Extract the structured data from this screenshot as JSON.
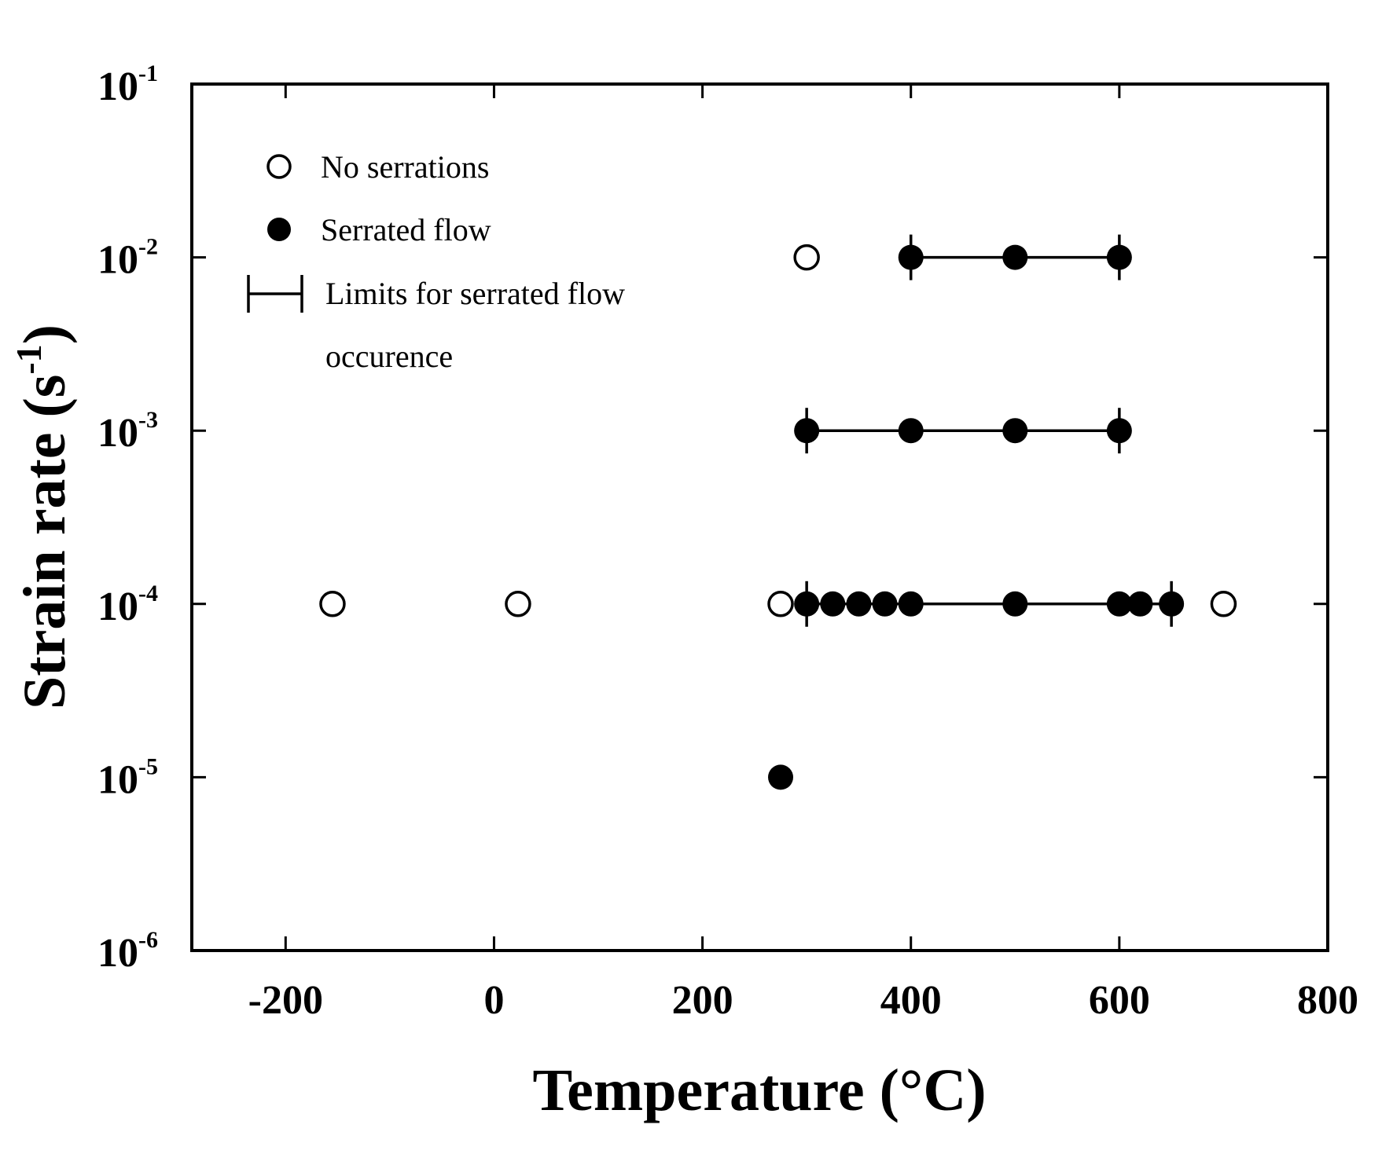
{
  "chart_data": {
    "type": "scatter",
    "xlabel": "Temperature (°C)",
    "ylabel_main": "Strain rate (s",
    "ylabel_sup": "-1",
    "ylabel_close": ")",
    "x_scale": "linear",
    "y_scale": "log",
    "xlim": [
      -290,
      800
    ],
    "ylim": [
      1e-06,
      0.1
    ],
    "x_ticks": [
      -200,
      0,
      200,
      400,
      600,
      800
    ],
    "x_tick_labels": [
      "-200",
      "0",
      "200",
      "400",
      "600",
      "800"
    ],
    "y_ticks": [
      {
        "value": 0.1,
        "base": "10",
        "exp": "-1"
      },
      {
        "value": 0.01,
        "base": "10",
        "exp": "-2"
      },
      {
        "value": 0.001,
        "base": "10",
        "exp": "-3"
      },
      {
        "value": 0.0001,
        "base": "10",
        "exp": "-4"
      },
      {
        "value": 1e-05,
        "base": "10",
        "exp": "-5"
      },
      {
        "value": 1e-06,
        "base": "10",
        "exp": "-6"
      }
    ],
    "grid": false,
    "legend_position": "top-left",
    "legend": {
      "no_serrations": "No serrations",
      "serrated_flow": "Serrated flow",
      "limits_line1": "Limits for serrated flow",
      "limits_line2": "occurence"
    },
    "series": [
      {
        "name": "No serrations",
        "marker": "open-circle",
        "points": [
          {
            "x": 300,
            "y": 0.01
          },
          {
            "x": -155,
            "y": 0.0001
          },
          {
            "x": 23,
            "y": 0.0001
          },
          {
            "x": 275,
            "y": 0.0001
          },
          {
            "x": 700,
            "y": 0.0001
          }
        ]
      },
      {
        "name": "Serrated flow",
        "marker": "filled-circle",
        "points": [
          {
            "x": 400,
            "y": 0.01
          },
          {
            "x": 500,
            "y": 0.01
          },
          {
            "x": 600,
            "y": 0.01
          },
          {
            "x": 300,
            "y": 0.001
          },
          {
            "x": 400,
            "y": 0.001
          },
          {
            "x": 500,
            "y": 0.001
          },
          {
            "x": 600,
            "y": 0.001
          },
          {
            "x": 300,
            "y": 0.0001
          },
          {
            "x": 325,
            "y": 0.0001
          },
          {
            "x": 350,
            "y": 0.0001
          },
          {
            "x": 375,
            "y": 0.0001
          },
          {
            "x": 400,
            "y": 0.0001
          },
          {
            "x": 500,
            "y": 0.0001
          },
          {
            "x": 600,
            "y": 0.0001
          },
          {
            "x": 620,
            "y": 0.0001
          },
          {
            "x": 650,
            "y": 0.0001
          },
          {
            "x": 275,
            "y": 1e-05
          }
        ]
      }
    ],
    "serrated_ranges": [
      {
        "y": 0.01,
        "x_min": 400,
        "x_max": 600
      },
      {
        "y": 0.001,
        "x_min": 300,
        "x_max": 600
      },
      {
        "y": 0.0001,
        "x_min": 300,
        "x_max": 650
      }
    ]
  }
}
